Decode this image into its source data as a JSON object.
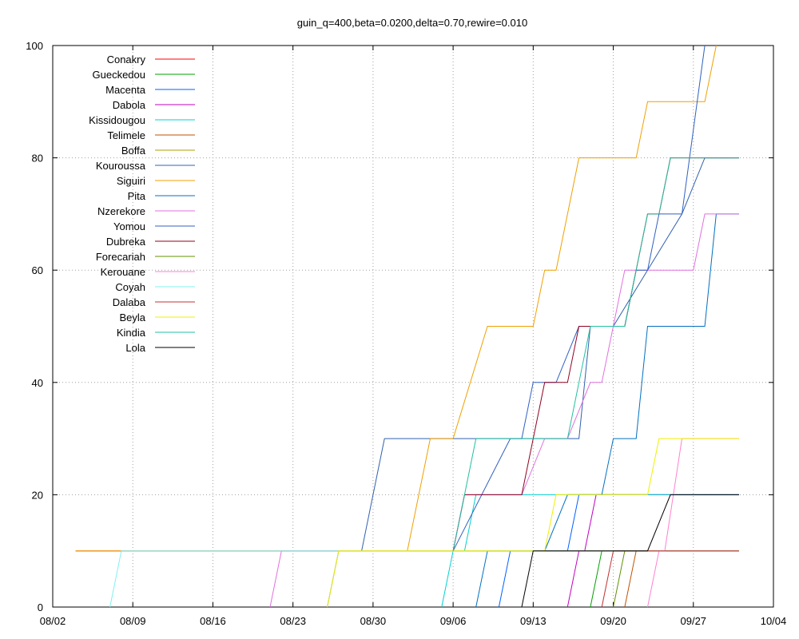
{
  "chart_data": {
    "type": "line",
    "title": "guin_q=400,beta=0.0200,delta=0.70,rewire=0.010",
    "xlabel": "",
    "ylabel": "",
    "xlim": [
      "08/02",
      "10/04"
    ],
    "ylim": [
      0,
      100
    ],
    "grid": true,
    "legend_position": "top-left",
    "x_ticks": [
      "08/02",
      "08/09",
      "08/16",
      "08/23",
      "08/30",
      "09/06",
      "09/13",
      "09/20",
      "09/27",
      "10/04"
    ],
    "y_ticks": [
      "0",
      "20",
      "40",
      "60",
      "80",
      "100"
    ],
    "x_unit": "days since 08/02",
    "series": [
      {
        "name": "Conakry",
        "color": "#ff0000",
        "points": [
          [
            2,
            10
          ],
          [
            60,
            10
          ]
        ]
      },
      {
        "name": "Gueckedou",
        "color": "#00a000",
        "points": [
          [
            47,
            0
          ],
          [
            48,
            10
          ],
          [
            60,
            10
          ]
        ]
      },
      {
        "name": "Macenta",
        "color": "#0060ff",
        "points": [
          [
            39,
            0
          ],
          [
            40,
            10
          ],
          [
            45,
            10
          ],
          [
            46,
            20
          ],
          [
            60,
            20
          ]
        ]
      },
      {
        "name": "Dabola",
        "color": "#c000c0",
        "points": [
          [
            45,
            0
          ],
          [
            46,
            10
          ],
          [
            46.5,
            10
          ],
          [
            47.5,
            20
          ],
          [
            60,
            20
          ]
        ]
      },
      {
        "name": "Kissidougou",
        "color": "#00d0d0",
        "points": [
          [
            34,
            0
          ],
          [
            35,
            10
          ],
          [
            36,
            10
          ],
          [
            37,
            20
          ],
          [
            60,
            20
          ]
        ]
      },
      {
        "name": "Telimele",
        "color": "#c05000",
        "points": [
          [
            50,
            0
          ],
          [
            51,
            10
          ],
          [
            60,
            10
          ]
        ]
      },
      {
        "name": "Boffa",
        "color": "#b0a000",
        "points": [
          [
            25,
            10
          ],
          [
            60,
            10
          ]
        ]
      },
      {
        "name": "Kouroussa",
        "color": "#3060b0",
        "points": [
          [
            24,
            0
          ],
          [
            25,
            10
          ],
          [
            27,
            10
          ],
          [
            29,
            30
          ],
          [
            46,
            30
          ],
          [
            47,
            50
          ],
          [
            49,
            50
          ],
          [
            52,
            60
          ],
          [
            55,
            70
          ],
          [
            57,
            80
          ],
          [
            60,
            80
          ]
        ]
      },
      {
        "name": "Siguiri",
        "color": "#f0a000",
        "points": [
          [
            2,
            10
          ],
          [
            31,
            10
          ],
          [
            33,
            30
          ],
          [
            35,
            30
          ],
          [
            38,
            50
          ],
          [
            42,
            50
          ],
          [
            43,
            60
          ],
          [
            44,
            60
          ],
          [
            46,
            80
          ],
          [
            51,
            80
          ],
          [
            52,
            90
          ],
          [
            57,
            90
          ],
          [
            58,
            100
          ]
        ]
      },
      {
        "name": "Pita",
        "color": "#0070c0",
        "points": [
          [
            37,
            0
          ],
          [
            38,
            10
          ],
          [
            43,
            10
          ],
          [
            45,
            20
          ],
          [
            48,
            20
          ],
          [
            49,
            30
          ],
          [
            51,
            30
          ],
          [
            52,
            50
          ],
          [
            57,
            50
          ],
          [
            58,
            70
          ],
          [
            60,
            70
          ]
        ]
      },
      {
        "name": "Nzerekore",
        "color": "#e070e0",
        "points": [
          [
            19,
            0
          ],
          [
            20,
            10
          ],
          [
            35,
            10
          ],
          [
            36,
            20
          ],
          [
            41,
            20
          ],
          [
            43,
            30
          ],
          [
            45,
            30
          ],
          [
            47,
            40
          ],
          [
            48,
            40
          ],
          [
            50,
            60
          ],
          [
            56,
            60
          ],
          [
            57,
            70
          ],
          [
            60,
            70
          ]
        ]
      },
      {
        "name": "Yomou",
        "color": "#3060c0",
        "points": [
          [
            35,
            10
          ],
          [
            40,
            30
          ],
          [
            41,
            30
          ],
          [
            42,
            40
          ],
          [
            44,
            40
          ],
          [
            46,
            50
          ],
          [
            50,
            50
          ],
          [
            51,
            60
          ],
          [
            52,
            60
          ],
          [
            53,
            70
          ],
          [
            55,
            70
          ],
          [
            57,
            100
          ]
        ]
      },
      {
        "name": "Dubreka",
        "color": "#900020",
        "points": [
          [
            35,
            10
          ],
          [
            36,
            20
          ],
          [
            41,
            20
          ],
          [
            43,
            40
          ],
          [
            45,
            40
          ],
          [
            46,
            50
          ],
          [
            50,
            50
          ],
          [
            52,
            70
          ],
          [
            53,
            70
          ],
          [
            54,
            80
          ],
          [
            60,
            80
          ]
        ]
      },
      {
        "name": "Forecariah",
        "color": "#609000",
        "points": [
          [
            49,
            0
          ],
          [
            50,
            10
          ],
          [
            60,
            10
          ]
        ]
      },
      {
        "name": "Kerouane",
        "color": "#ff80d0",
        "points": [
          [
            52,
            0
          ],
          [
            53,
            10
          ],
          [
            53.5,
            10
          ],
          [
            55,
            30
          ],
          [
            60,
            30
          ]
        ]
      },
      {
        "name": "Coyah",
        "color": "#80f0f0",
        "points": [
          [
            5,
            0
          ],
          [
            6,
            10
          ],
          [
            60,
            10
          ]
        ]
      },
      {
        "name": "Dalaba",
        "color": "#c03030",
        "points": [
          [
            48,
            0
          ],
          [
            49,
            10
          ],
          [
            60,
            10
          ]
        ]
      },
      {
        "name": "Beyla",
        "color": "#f0f000",
        "points": [
          [
            24,
            0
          ],
          [
            25,
            10
          ],
          [
            43,
            10
          ],
          [
            44,
            20
          ],
          [
            51,
            20
          ],
          [
            52,
            20
          ],
          [
            53,
            30
          ],
          [
            60,
            30
          ]
        ]
      },
      {
        "name": "Kindia",
        "color": "#20c0a0",
        "points": [
          [
            35,
            10
          ],
          [
            37,
            30
          ],
          [
            45,
            30
          ],
          [
            46,
            40
          ],
          [
            47,
            50
          ],
          [
            49,
            50
          ],
          [
            50,
            50
          ],
          [
            51,
            60
          ],
          [
            52,
            70
          ],
          [
            53,
            70
          ],
          [
            54,
            80
          ],
          [
            60,
            80
          ]
        ]
      },
      {
        "name": "Lola",
        "color": "#000000",
        "points": [
          [
            41,
            0
          ],
          [
            42,
            10
          ],
          [
            52,
            10
          ],
          [
            54,
            20
          ],
          [
            60,
            20
          ]
        ]
      }
    ]
  }
}
